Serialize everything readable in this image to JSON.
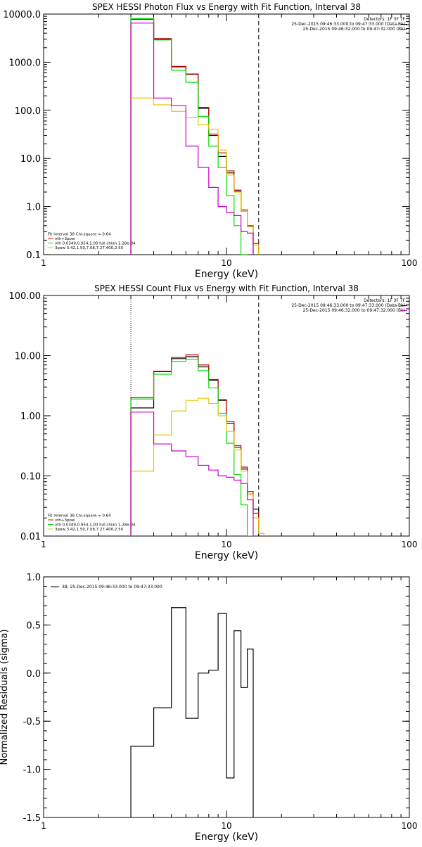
{
  "chart_data": [
    {
      "type": "line",
      "title": "SPEX HESSI Photon Flux vs Energy with Fit Function, Interval 38",
      "xlabel": "Energy (keV)",
      "ylabel": "",
      "x_scale": "log",
      "y_scale": "log",
      "xlim": [
        1,
        100
      ],
      "ylim": [
        0.1,
        10000
      ],
      "x_ticks": [
        1,
        10,
        100
      ],
      "x_tick_labels": [
        "1",
        "10",
        "100"
      ],
      "y_ticks": [
        0.1,
        1,
        10,
        100,
        1000,
        10000
      ],
      "y_tick_labels": [
        "0.1",
        "1.0",
        "10.0",
        "100.0",
        "1000.0",
        "10000.0"
      ],
      "vlines": [
        {
          "x": 3,
          "style": "dotted",
          "color": "#000000"
        },
        {
          "x": 15,
          "style": "dashed",
          "color": "#000000"
        }
      ],
      "header_lines": [
        "Detectors: 1F 3F 7F",
        "25-Dec-2015 09:46:33.000 to 09:47:33.000 (Data-Bk)",
        "25-Dec-2015 09:46:32.000 to 09:47:32.000 (Bk)"
      ],
      "legend_lines": [
        {
          "text": "Fit Interval 38   Chi-square = 0.64",
          "color": "#000000"
        },
        {
          "text": "vth+3pow",
          "color": "#ff0000"
        },
        {
          "text": "vth 0.0349,0.954,1.00  full chian 1.28e-04",
          "color": "#00dd00"
        },
        {
          "text": "3pow 3.42,1.50,7.08,7.27,400,2.50",
          "color": "#e6c800"
        }
      ],
      "bin_edges": [
        3.0,
        4.0,
        5.0,
        6.0,
        7.0,
        8.0,
        9.0,
        10.0,
        11.0,
        12.0,
        13.0,
        14.0,
        15.0,
        16.0,
        17.0
      ],
      "series": [
        {
          "name": "Data-Bk",
          "color": "#000000",
          "values": [
            7800,
            3000,
            800,
            560,
            110,
            30,
            11,
            5,
            2.1,
            0.8,
            0.38,
            null,
            null,
            null
          ]
        },
        {
          "name": "vth+3pow",
          "color": "#cc0000",
          "values": [
            8000,
            3100,
            820,
            570,
            115,
            32,
            13,
            5.5,
            2.2,
            0.85,
            0.4,
            0.17,
            null,
            null
          ]
        },
        {
          "name": "vth",
          "color": "#00dd00",
          "values": [
            8000,
            2900,
            680,
            380,
            75,
            18,
            6.5,
            1.7,
            0.4,
            0.1,
            0.04,
            null,
            null,
            null
          ]
        },
        {
          "name": "3pow",
          "color": "#e6c800",
          "values": [
            180,
            130,
            95,
            70,
            50,
            40,
            15,
            4.5,
            2.0,
            0.8,
            0.38,
            0.16,
            null,
            null
          ]
        },
        {
          "name": "Bk",
          "color": "#cc00cc",
          "values": [
            6500,
            180,
            125,
            18,
            6.5,
            2.5,
            1.0,
            0.75,
            0.65,
            0.3,
            0.28,
            null,
            null,
            null
          ]
        }
      ]
    },
    {
      "type": "line",
      "title": "SPEX HESSI Count Flux vs Energy with Fit Function, Interval 38",
      "xlabel": "Energy (keV)",
      "ylabel": "",
      "x_scale": "log",
      "y_scale": "log",
      "xlim": [
        1,
        100
      ],
      "ylim": [
        0.01,
        100
      ],
      "x_ticks": [
        1,
        10,
        100
      ],
      "x_tick_labels": [
        "1",
        "10",
        "100"
      ],
      "y_ticks": [
        0.01,
        0.1,
        1,
        10,
        100
      ],
      "y_tick_labels": [
        "0.01",
        "0.10",
        "1.00",
        "10.00",
        "100.00"
      ],
      "vlines": [
        {
          "x": 3,
          "style": "dotted",
          "color": "#000000"
        },
        {
          "x": 15,
          "style": "dashed",
          "color": "#000000"
        }
      ],
      "header_lines": [
        "Detectors: 1F 3F 7F",
        "25-Dec-2015 09:46:33.000 to 09:47:33.000 (Data-Bk)",
        "25-Dec-2015 09:46:32.000 to 09:47:32.000 (Bk)"
      ],
      "legend_lines": [
        {
          "text": "Fit Interval 38   Chi-square = 0.64",
          "color": "#000000"
        },
        {
          "text": "vth+3pow",
          "color": "#ff0000"
        },
        {
          "text": "vth 0.0349,0.954,1.00  full chian 1.28e-04",
          "color": "#00dd00"
        },
        {
          "text": "3pow 3.42,1.50,7.08,7.27,400,2.50",
          "color": "#e6c800"
        }
      ],
      "bin_edges": [
        3.0,
        4.0,
        5.0,
        6.0,
        7.0,
        8.0,
        9.0,
        10.0,
        11.0,
        12.0,
        13.0,
        14.0,
        15.0,
        16.0,
        17.0,
        18.0,
        19.0
      ],
      "series": [
        {
          "name": "Data-Bk",
          "color": "#000000",
          "values": [
            1.35,
            5.4,
            8.9,
            9.6,
            6.5,
            3.9,
            1.8,
            0.75,
            0.3,
            0.13,
            0.05,
            0.028,
            null,
            null,
            null,
            null
          ]
        },
        {
          "name": "vth+3pow",
          "color": "#cc0000",
          "values": [
            2.0,
            5.5,
            9.3,
            10.3,
            7.0,
            4.0,
            1.85,
            0.8,
            0.32,
            0.14,
            0.055,
            0.024,
            0.011,
            null,
            null,
            null
          ]
        },
        {
          "name": "vth",
          "color": "#00dd00",
          "values": [
            1.9,
            4.9,
            8.0,
            8.7,
            5.6,
            2.9,
            1.1,
            0.35,
            0.105,
            0.033,
            0.01,
            null,
            null,
            null,
            null,
            null
          ]
        },
        {
          "name": "3pow",
          "color": "#e6c800",
          "values": [
            0.12,
            0.48,
            1.2,
            1.8,
            1.95,
            1.6,
            1.0,
            0.55,
            0.27,
            0.12,
            0.05,
            0.02,
            0.011,
            null,
            null,
            null
          ]
        },
        {
          "name": "Bk",
          "color": "#cc00cc",
          "values": [
            1.15,
            0.34,
            0.26,
            0.21,
            0.15,
            0.125,
            0.1,
            0.095,
            0.085,
            0.075,
            0.04,
            null,
            null,
            null,
            null,
            null
          ]
        }
      ]
    },
    {
      "type": "line",
      "title": "",
      "xlabel": "Energy (keV)",
      "ylabel": "Normalized Residuals (sigma)",
      "x_scale": "log",
      "y_scale": "linear",
      "xlim": [
        1,
        100
      ],
      "ylim": [
        -1.5,
        1.0
      ],
      "x_ticks": [
        1,
        10,
        100
      ],
      "x_tick_labels": [
        "1",
        "10",
        "100"
      ],
      "y_ticks": [
        -1.5,
        -1.0,
        -0.5,
        0.0,
        0.5,
        1.0
      ],
      "y_tick_labels": [
        "-1.5",
        "-1.0",
        "-0.5",
        "0.0",
        "0.5",
        "1.0"
      ],
      "legend_lines": [
        {
          "text": "38, 25-Dec-2015 09:46:33.000 to 09:47:33.000",
          "color": "#000000"
        }
      ],
      "bin_edges": [
        3.0,
        4.0,
        5.0,
        6.0,
        7.0,
        8.0,
        9.0,
        10.0,
        11.0,
        12.0,
        13.0,
        14.0,
        15.0
      ],
      "series": [
        {
          "name": "38",
          "color": "#000000",
          "values": [
            -0.76,
            -0.36,
            0.68,
            -0.47,
            0.0,
            0.03,
            0.62,
            -1.09,
            0.44,
            -0.15,
            0.25,
            null
          ]
        }
      ]
    }
  ]
}
